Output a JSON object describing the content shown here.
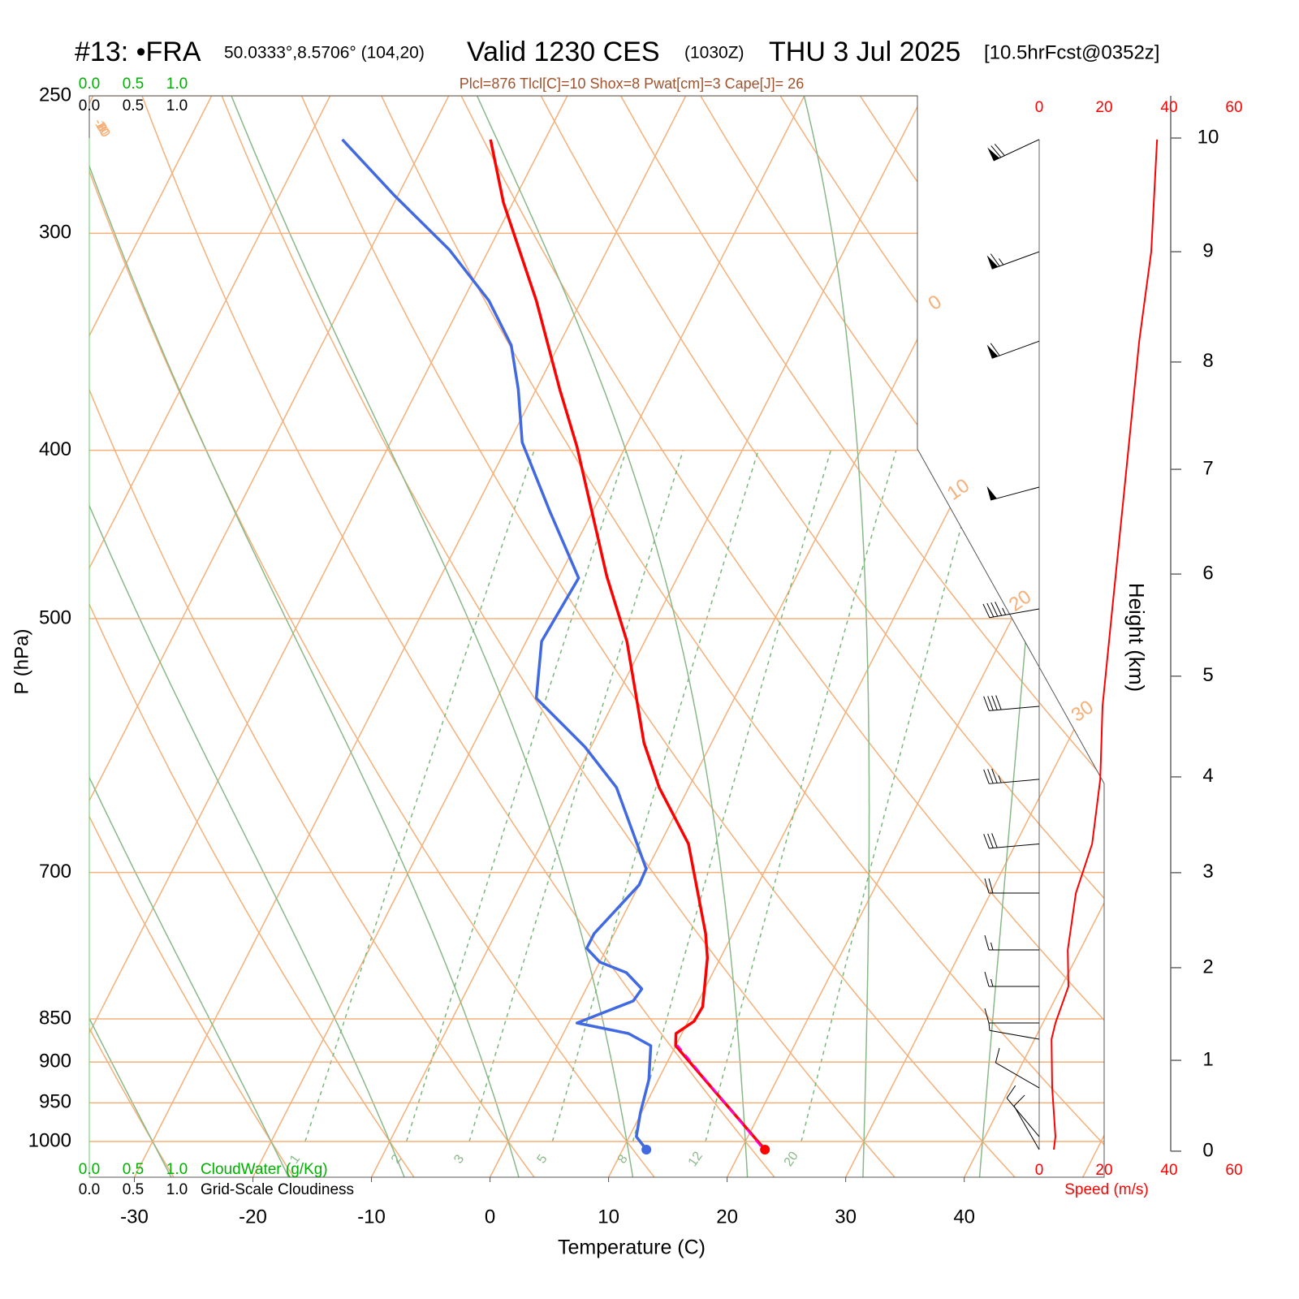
{
  "chart_data": {
    "type": "skewt",
    "title": "#13: •FRA",
    "location": "50.0333°,8.5706° (104,20)",
    "valid": "Valid 1230 CES",
    "valid_utc": "(1030Z)",
    "date": "THU 3 Jul 2025",
    "forecast": "[10.5hrFcst@0352z]",
    "subtitle": "Plcl=876 Tlcl[C]=10 Shox=8 Pwat[cm]=3 Cape[J]= 26",
    "xlabel": "Temperature (C)",
    "ylabel": "P (hPa)",
    "xlim": [
      -33.8,
      51.8
    ],
    "xticks": [
      -30,
      -20,
      -10,
      0,
      10,
      20,
      30,
      40
    ],
    "ylim": [
      1048.5,
      250
    ],
    "yticks": [
      250,
      300,
      400,
      500,
      700,
      850,
      900,
      950,
      1000
    ],
    "log_y": true,
    "isotherm_labels": [
      0,
      10,
      20,
      30
    ],
    "dry_adiabat_labels": [
      10,
      0,
      -10,
      -20,
      -30
    ],
    "mixing_ratio_labels": [
      1,
      2,
      3,
      5,
      8,
      12,
      20
    ],
    "temperature": {
      "color": "#ff0000",
      "pressure": [
        1010.8,
        880.7,
        866.6,
        852.7,
        836.4,
        784.0,
        759.0,
        674.0,
        625.4,
        589.5,
        515.3,
        472.7,
        398.0,
        369.0,
        328.0,
        288.0,
        264.9
      ],
      "values": [
        22.0,
        10.0,
        9.5,
        10.5,
        10.6,
        8.9,
        7.7,
        2.4,
        -2.5,
        -5.7,
        -11.5,
        -16.0,
        -24.1,
        -28.0,
        -33.8,
        -40.8,
        -44.6
      ]
    },
    "dewpoint": {
      "color": "#4169e1",
      "pressure": [
        1010.8,
        993.6,
        962.0,
        921.4,
        880.7,
        866.6,
        854.6,
        830.0,
        816.8,
        799.4,
        788.3,
        774.0,
        759.0,
        711.7,
        696.6,
        625.4,
        592.7,
        555.6,
        515.3,
        473.8,
        433.7,
        395.8,
        369.0,
        348.0,
        328.0,
        306.7,
        285.0,
        264.9
      ],
      "values": [
        12.0,
        10.6,
        9.9,
        9.2,
        7.9,
        5.5,
        0.7,
        4.5,
        4.7,
        2.7,
        0.0,
        -1.7,
        -1.7,
        0.0,
        -0.1,
        -6.1,
        -10.5,
        -16.7,
        -18.7,
        -18.3,
        -23.6,
        -28.9,
        -31.5,
        -34.0,
        -37.8,
        -43.3,
        -50.4,
        -57.1
      ]
    },
    "parcel": {
      "color": "#ff00ff",
      "pressure": [
        1006.5,
        879.8
      ],
      "values": [
        21.5,
        10.1
      ]
    },
    "cloudwater": {
      "label": "CloudWater (g/Kg)",
      "color": "#00b000",
      "ticks": [
        {
          "value": 0,
          "label": "0.0"
        },
        {
          "value": 0.5,
          "label": "0.5"
        },
        {
          "value": 1,
          "label": "1.0"
        }
      ]
    },
    "cloudiness": {
      "label": "Grid-Scale Cloudiness",
      "color": "#000000",
      "ticks": [
        {
          "value": 0,
          "label": "0.0"
        },
        {
          "value": 0.5,
          "label": "0.5"
        },
        {
          "value": 1,
          "label": "1.0"
        }
      ]
    },
    "wind": {
      "xlabel": "Speed (m/s)",
      "color": "#ff0000",
      "xlim": [
        0,
        60
      ],
      "xticks": [
        0,
        20,
        40,
        60
      ],
      "pressure": [
        1010.8,
        993.6,
        931.4,
        873.2,
        854.6,
        814.2,
        775.7,
        719.4,
        674.0,
        618.7,
        561.6,
        493.6,
        420.0,
        346.1,
        307.4,
        264.9
      ],
      "values": [
        4.5,
        5.0,
        4.0,
        3.8,
        5.0,
        9.0,
        8.8,
        11.3,
        16.3,
        18.8,
        19.5,
        22.5,
        26.3,
        30.8,
        34.5,
        36.3
      ],
      "direction": [
        330,
        320,
        300,
        280,
        270,
        270,
        270,
        270,
        265,
        265,
        265,
        260,
        255,
        250,
        250,
        245
      ]
    },
    "height": {
      "ylabel": "Height (km)",
      "yticks": [
        0,
        1,
        2,
        3,
        4,
        5,
        6,
        7,
        8,
        9,
        10
      ],
      "tick_pressures": [
        1012.9,
        898.0,
        794.2,
        700.2,
        616.7,
        539.6,
        471.3,
        410.2,
        355.8,
        307.4,
        264.4
      ]
    }
  }
}
